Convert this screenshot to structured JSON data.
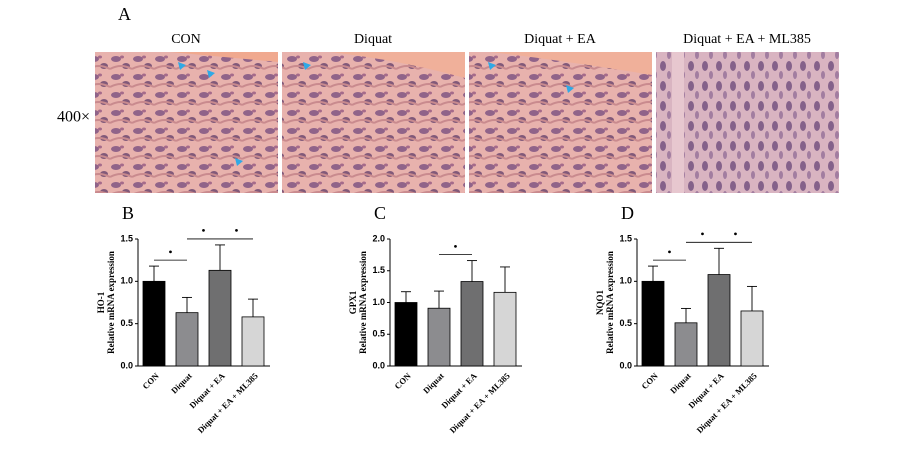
{
  "figure": {
    "label": "A",
    "magnification": "400×",
    "image_titles": [
      "CON",
      "Diquat",
      "Diquat + EA",
      "Diquat + EA + ML385"
    ]
  },
  "chart_data": [
    {
      "type": "bar",
      "label": "B",
      "ylabel": [
        "HO-1",
        "Relative mRNA expression"
      ],
      "categories": [
        "CON",
        "Diquat",
        "Diquat + EA",
        "Diquat + EA + ML385"
      ],
      "values": [
        1.0,
        0.63,
        1.13,
        0.58
      ],
      "errors": [
        0.18,
        0.18,
        0.3,
        0.21
      ],
      "colors": [
        "#000000",
        "#8c8c8f",
        "#6f6f70",
        "#d6d6d6"
      ],
      "ylim": [
        0,
        1.5
      ],
      "yticks": [
        {
          "value": 0,
          "label": "0.0"
        },
        {
          "value": 0.5,
          "label": "0.5"
        },
        {
          "value": 1,
          "label": "1.0"
        },
        {
          "value": 1.5,
          "label": "1.5"
        }
      ],
      "significance": [
        {
          "pair": [
            "CON",
            "Diquat"
          ],
          "label": "•"
        },
        {
          "pair": [
            "Diquat",
            "Diquat + EA"
          ],
          "label": "•"
        },
        {
          "pair": [
            "Diquat + EA",
            "Diquat + EA + ML385"
          ],
          "label": "•"
        }
      ]
    },
    {
      "type": "bar",
      "label": "C",
      "ylabel": [
        "GPX1",
        "Relative mRNA expression"
      ],
      "categories": [
        "CON",
        "Diquat",
        "Diquat + EA",
        "Diquat + EA + ML385"
      ],
      "values": [
        1.0,
        0.91,
        1.33,
        1.16
      ],
      "errors": [
        0.17,
        0.27,
        0.33,
        0.4
      ],
      "colors": [
        "#000000",
        "#8c8c8f",
        "#6f6f70",
        "#d6d6d6"
      ],
      "ylim": [
        0,
        2
      ],
      "yticks": [
        {
          "value": 0,
          "label": "0.0"
        },
        {
          "value": 0.5,
          "label": "0.5"
        },
        {
          "value": 1,
          "label": "1.0"
        },
        {
          "value": 1.5,
          "label": "1.5"
        },
        {
          "value": 2,
          "label": "2.0"
        }
      ],
      "significance": [
        {
          "pair": [
            "Diquat",
            "Diquat + EA"
          ],
          "label": "•"
        }
      ]
    },
    {
      "type": "bar",
      "label": "D",
      "ylabel": [
        "NQO1",
        "Relative mRNA expression"
      ],
      "categories": [
        "CON",
        "Diquat",
        "Diquat + EA",
        "Diquat + EA + ML385"
      ],
      "values": [
        1.0,
        0.51,
        1.08,
        0.65
      ],
      "errors": [
        0.18,
        0.17,
        0.31,
        0.29
      ],
      "colors": [
        "#000000",
        "#8c8c8f",
        "#6f6f70",
        "#d6d6d6"
      ],
      "ylim": [
        0,
        1.5
      ],
      "yticks": [
        {
          "value": 0,
          "label": "0.0"
        },
        {
          "value": 0.5,
          "label": "0.5"
        },
        {
          "value": 1,
          "label": "1.0"
        },
        {
          "value": 1.5,
          "label": "1.5"
        }
      ],
      "significance": [
        {
          "pair": [
            "CON",
            "Diquat"
          ],
          "label": "•"
        },
        {
          "pair": [
            "Diquat",
            "Diquat + EA"
          ],
          "label": "•"
        },
        {
          "pair": [
            "Diquat + EA",
            "Diquat + EA + ML385"
          ],
          "label": "•"
        }
      ]
    }
  ]
}
